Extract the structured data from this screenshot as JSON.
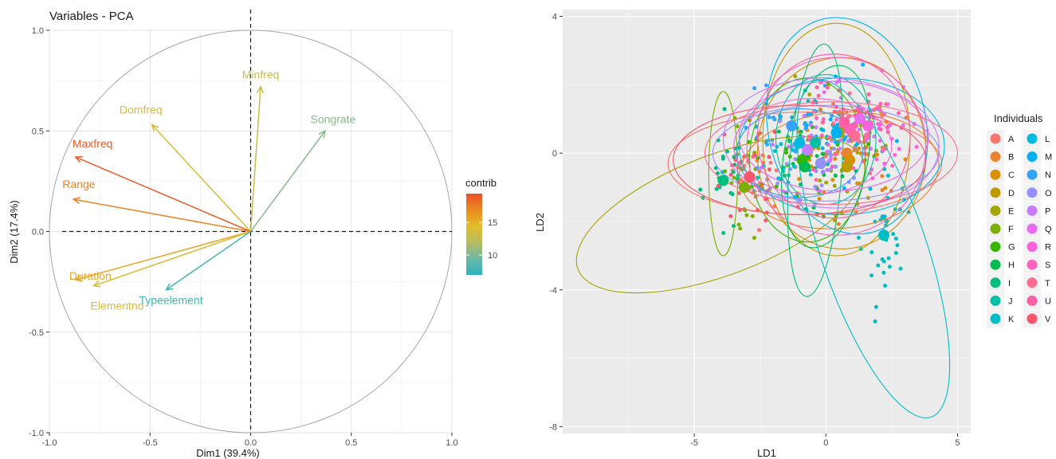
{
  "chart_data": [
    {
      "type": "scatter",
      "subtype": "pca-variable-correlation-circle",
      "title": "Variables - PCA",
      "xlabel": "Dim1 (39.4%)",
      "ylabel": "Dim2 (17.4%)",
      "xlim": [
        -1.0,
        1.0
      ],
      "ylim": [
        -1.0,
        1.0
      ],
      "xticks": [
        "-1.0",
        "-0.5",
        "0.0",
        "0.5",
        "1.0"
      ],
      "yticks": [
        "1.0",
        "0.5",
        "0.0",
        "-0.5",
        "-1.0"
      ],
      "grid": true,
      "series": [
        {
          "name": "Minfreq",
          "x": 0.05,
          "y": 0.72,
          "contrib": 12
        },
        {
          "name": "Songrate",
          "x": 0.37,
          "y": 0.5,
          "contrib": 9
        },
        {
          "name": "Domfreq",
          "x": -0.49,
          "y": 0.53,
          "contrib": 13
        },
        {
          "name": "Maxfreq",
          "x": -0.87,
          "y": 0.37,
          "contrib": 19
        },
        {
          "name": "Range",
          "x": -0.88,
          "y": 0.16,
          "contrib": 17
        },
        {
          "name": "Duration",
          "x": -0.87,
          "y": -0.24,
          "contrib": 15
        },
        {
          "name": "Elementno",
          "x": -0.78,
          "y": -0.27,
          "contrib": 13
        },
        {
          "name": "Typeelement",
          "x": -0.42,
          "y": -0.29,
          "contrib": 6
        }
      ],
      "legend": {
        "title": "contrib",
        "ticks": [
          "15",
          "10"
        ],
        "colors": [
          "#e8502a",
          "#eb8b1e",
          "#e3bb29",
          "#b8bd61",
          "#6ab7a4",
          "#2fb3bd"
        ]
      }
    },
    {
      "type": "scatter",
      "subtype": "lda-scatter-with-ellipses",
      "title": "",
      "xlabel": "LD1",
      "ylabel": "LD2",
      "xlim": [
        -10,
        5.5
      ],
      "ylim": [
        -8.2,
        4.2
      ],
      "xticks": [
        "-5",
        "0",
        "5"
      ],
      "yticks": [
        "4",
        "0",
        "-4",
        "-8"
      ],
      "grid": true,
      "legend": {
        "title": "Individuals",
        "placement": "right",
        "items": [
          {
            "label": "A",
            "color": "#f8766d"
          },
          {
            "label": "B",
            "color": "#ea8331"
          },
          {
            "label": "C",
            "color": "#d89000"
          },
          {
            "label": "D",
            "color": "#c09b00"
          },
          {
            "label": "E",
            "color": "#a3a500"
          },
          {
            "label": "F",
            "color": "#7cae00"
          },
          {
            "label": "G",
            "color": "#39b600"
          },
          {
            "label": "H",
            "color": "#00bb4e"
          },
          {
            "label": "I",
            "color": "#00bf7d"
          },
          {
            "label": "J",
            "color": "#00c1a3"
          },
          {
            "label": "K",
            "color": "#00bfc4"
          },
          {
            "label": "L",
            "color": "#00bae0"
          },
          {
            "label": "M",
            "color": "#00b0f6"
          },
          {
            "label": "N",
            "color": "#35a2ff"
          },
          {
            "label": "O",
            "color": "#9590ff"
          },
          {
            "label": "P",
            "color": "#c77cff"
          },
          {
            "label": "Q",
            "color": "#e76bf3"
          },
          {
            "label": "R",
            "color": "#fa62db"
          },
          {
            "label": "S",
            "color": "#ff62bc"
          },
          {
            "label": "T",
            "color": "#ff6c91"
          },
          {
            "label": "U",
            "color": "#ff5fa3"
          },
          {
            "label": "V",
            "color": "#f8566d"
          }
        ]
      },
      "centroids": [
        {
          "label": "A",
          "x": -2.9,
          "y": -0.7
        },
        {
          "label": "B",
          "x": 0.8,
          "y": 0.0
        },
        {
          "label": "C",
          "x": 0.9,
          "y": -0.2
        },
        {
          "label": "D",
          "x": 0.8,
          "y": -0.4
        },
        {
          "label": "E",
          "x": 0.5,
          "y": 0.6
        },
        {
          "label": "F",
          "x": -3.1,
          "y": -1.0
        },
        {
          "label": "G",
          "x": -0.9,
          "y": -0.2
        },
        {
          "label": "H",
          "x": -0.8,
          "y": -0.4
        },
        {
          "label": "I",
          "x": -3.9,
          "y": -0.8
        },
        {
          "label": "J",
          "x": -0.4,
          "y": 0.3
        },
        {
          "label": "K",
          "x": 2.2,
          "y": -2.4
        },
        {
          "label": "L",
          "x": -1.0,
          "y": 0.3
        },
        {
          "label": "M",
          "x": 0.4,
          "y": 0.6
        },
        {
          "label": "N",
          "x": -1.3,
          "y": 0.8
        },
        {
          "label": "O",
          "x": -0.2,
          "y": -0.3
        },
        {
          "label": "P",
          "x": -0.7,
          "y": 0.1
        },
        {
          "label": "Q",
          "x": 1.3,
          "y": 1.0
        },
        {
          "label": "R",
          "x": 1.6,
          "y": 0.8
        },
        {
          "label": "S",
          "x": 0.9,
          "y": 0.7
        },
        {
          "label": "T",
          "x": 1.1,
          "y": 0.5
        },
        {
          "label": "U",
          "x": 0.7,
          "y": 0.9
        },
        {
          "label": "V",
          "x": -2.9,
          "y": -0.7
        }
      ],
      "ellipses": [
        {
          "label": "A",
          "cx": -0.8,
          "cy": -0.3,
          "rx": 5.2,
          "ry": 1.5,
          "angle": 0
        },
        {
          "label": "B",
          "cx": 0.5,
          "cy": -0.5,
          "rx": 3.8,
          "ry": 1.7,
          "angle": 5
        },
        {
          "label": "C",
          "cx": 0.6,
          "cy": 0.0,
          "rx": 3.2,
          "ry": 2.8,
          "angle": 0
        },
        {
          "label": "D",
          "cx": 0.4,
          "cy": 0.4,
          "rx": 2.8,
          "ry": 3.4,
          "angle": 0
        },
        {
          "label": "E",
          "cx": -4.0,
          "cy": -1.8,
          "rx": 5.8,
          "ry": 1.75,
          "angle": 21
        },
        {
          "label": "F",
          "cx": -3.9,
          "cy": -0.6,
          "rx": 0.55,
          "ry": 2.4,
          "angle": 0
        },
        {
          "label": "G",
          "cx": -0.7,
          "cy": -0.2,
          "rx": 2.2,
          "ry": 2.4,
          "angle": 0
        },
        {
          "label": "H",
          "cx": 0.0,
          "cy": -0.1,
          "rx": 1.6,
          "ry": 2.7,
          "angle": -10
        },
        {
          "label": "I",
          "cx": -0.4,
          "cy": -0.5,
          "rx": 1.0,
          "ry": 3.7,
          "angle": -4
        },
        {
          "label": "J",
          "cx": 0.0,
          "cy": 0.4,
          "rx": 1.9,
          "ry": 1.9,
          "angle": 0
        },
        {
          "label": "K",
          "cx": 1.8,
          "cy": -2.8,
          "rx": 2.0,
          "ry": 5.2,
          "angle": 19
        },
        {
          "label": "L",
          "cx": 0.6,
          "cy": 0.2,
          "rx": 3.9,
          "ry": 2.0,
          "angle": 0
        },
        {
          "label": "M",
          "cx": 0.8,
          "cy": 0.8,
          "rx": 3.0,
          "ry": 3.2,
          "angle": 12
        },
        {
          "label": "N",
          "cx": -1.0,
          "cy": 0.0,
          "rx": 2.4,
          "ry": 1.3,
          "angle": 0
        },
        {
          "label": "O",
          "cx": 0.0,
          "cy": 0.0,
          "rx": 4.3,
          "ry": 1.4,
          "angle": 0
        },
        {
          "label": "P",
          "cx": 0.2,
          "cy": 0.3,
          "rx": 4.1,
          "ry": 1.9,
          "angle": -3
        },
        {
          "label": "Q",
          "cx": 0.3,
          "cy": 0.5,
          "rx": 3.6,
          "ry": 1.6,
          "angle": 0
        },
        {
          "label": "R",
          "cx": -0.5,
          "cy": 0.2,
          "rx": 3.0,
          "ry": 1.4,
          "angle": 0
        },
        {
          "label": "S",
          "cx": 0.4,
          "cy": 0.2,
          "rx": 3.4,
          "ry": 2.6,
          "angle": 0
        },
        {
          "label": "T",
          "cx": 0.2,
          "cy": 0.0,
          "rx": 4.8,
          "ry": 1.5,
          "angle": 0
        },
        {
          "label": "U",
          "cx": 0.3,
          "cy": 0.5,
          "rx": 2.9,
          "ry": 2.4,
          "angle": 0
        },
        {
          "label": "V",
          "cx": -1.0,
          "cy": -0.2,
          "rx": 4.8,
          "ry": 1.6,
          "angle": 0
        }
      ]
    }
  ]
}
